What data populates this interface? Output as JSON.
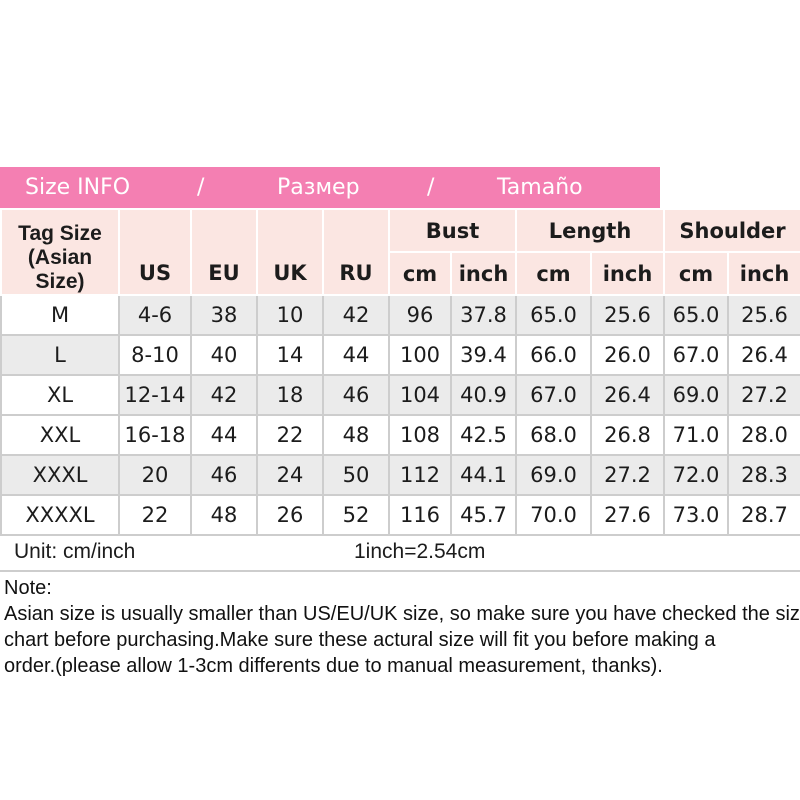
{
  "band": {
    "items": [
      "Size INFO",
      "/",
      "Размер",
      "/",
      "Tamaño"
    ]
  },
  "table": {
    "corner": {
      "line1": "Tag Size",
      "line2": "(Asian Size)"
    },
    "size_cols": [
      "US",
      "EU",
      "UK",
      "RU"
    ],
    "groups": [
      "Bust",
      "Length",
      "Shoulder"
    ],
    "subunits": [
      "cm",
      "inch",
      "cm",
      "inch",
      "cm",
      "inch"
    ],
    "rows": [
      {
        "cells": [
          "M",
          "4-6",
          "38",
          "10",
          "42",
          "96",
          "37.8",
          "65.0",
          "25.6",
          "65.0",
          "25.6"
        ],
        "shade": "data"
      },
      {
        "cells": [
          "L",
          "8-10",
          "40",
          "14",
          "44",
          "100",
          "39.4",
          "66.0",
          "26.0",
          "67.0",
          "26.4"
        ],
        "shade": "label"
      },
      {
        "cells": [
          "XL",
          "12-14",
          "42",
          "18",
          "46",
          "104",
          "40.9",
          "67.0",
          "26.4",
          "69.0",
          "27.2"
        ],
        "shade": "data"
      },
      {
        "cells": [
          "XXL",
          "16-18",
          "44",
          "22",
          "48",
          "108",
          "42.5",
          "68.0",
          "26.8",
          "71.0",
          "28.0"
        ],
        "shade": "none"
      },
      {
        "cells": [
          "XXXL",
          "20",
          "46",
          "24",
          "50",
          "112",
          "44.1",
          "69.0",
          "27.2",
          "72.0",
          "28.3"
        ],
        "shade": "all"
      },
      {
        "cells": [
          "XXXXL",
          "22",
          "48",
          "26",
          "52",
          "116",
          "45.7",
          "70.0",
          "27.6",
          "73.0",
          "28.7"
        ],
        "shade": "none"
      }
    ]
  },
  "footer": {
    "unit_label": "Unit: cm/inch",
    "conversion": "1inch=2.54cm"
  },
  "note": {
    "title": "Note:",
    "lines": [
      "Asian size is usually smaller than US/EU/UK size, so make sure you have checked the size",
      "chart before purchasing.Make sure these actural size will fit you before making a",
      "order.(please allow 1-3cm differents due to manual measurement, thanks)."
    ]
  },
  "colors": {
    "band_bg": "#f47fb2",
    "band_text": "#ffffff",
    "header_bg": "#fbe6e2",
    "row_shade": "#ebebeb",
    "grid_line": "#cdcdcd",
    "text": "#1c1c1c"
  }
}
